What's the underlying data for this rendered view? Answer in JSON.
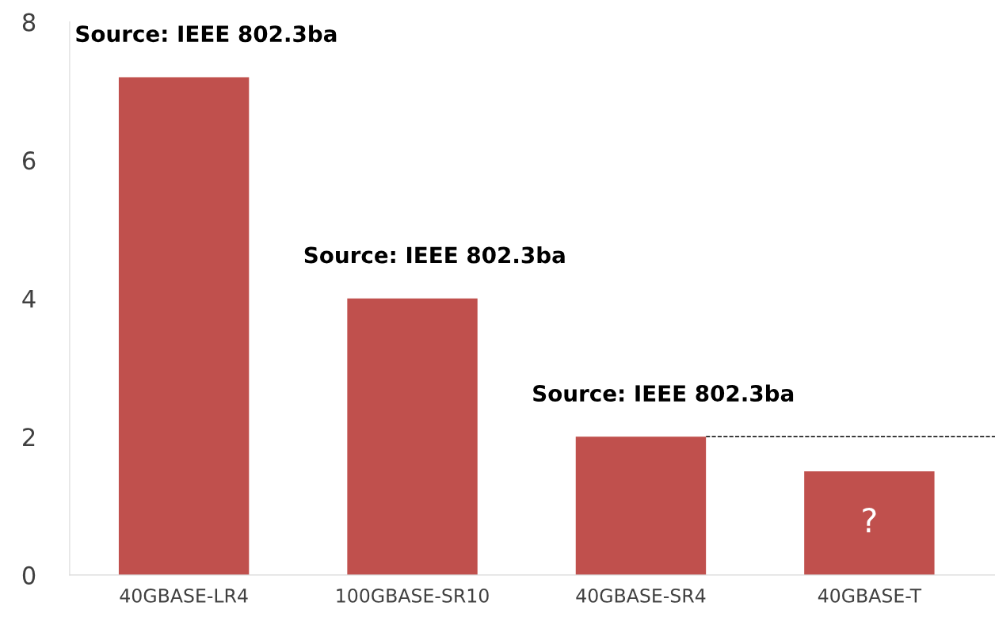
{
  "chart_data": {
    "type": "bar",
    "categories": [
      "40GBASE-LR4",
      "100GBASE-SR10",
      "40GBASE-SR4",
      "40GBASE-T"
    ],
    "values": [
      7.2,
      4.0,
      2.0,
      1.5
    ],
    "color": "#c0504d",
    "ylim": [
      0,
      8
    ],
    "yticks": [
      0,
      2,
      4,
      6,
      8
    ],
    "grid": false,
    "ref_lines": [
      {
        "axis": "y",
        "value": 2,
        "color": "#000000",
        "line_style": "dashed"
      }
    ],
    "annotations": [
      {
        "text": "Source: IEEE 802.3ba",
        "x": "40GBASE-LR4",
        "y": 7.2
      },
      {
        "text": "Source: IEEE 802.3ba",
        "x": "100GBASE-SR10",
        "y": 4.0
      },
      {
        "text": "Source: IEEE 802.3ba",
        "x": "40GBASE-SR4",
        "y": 2.0
      },
      "?"
    ]
  }
}
